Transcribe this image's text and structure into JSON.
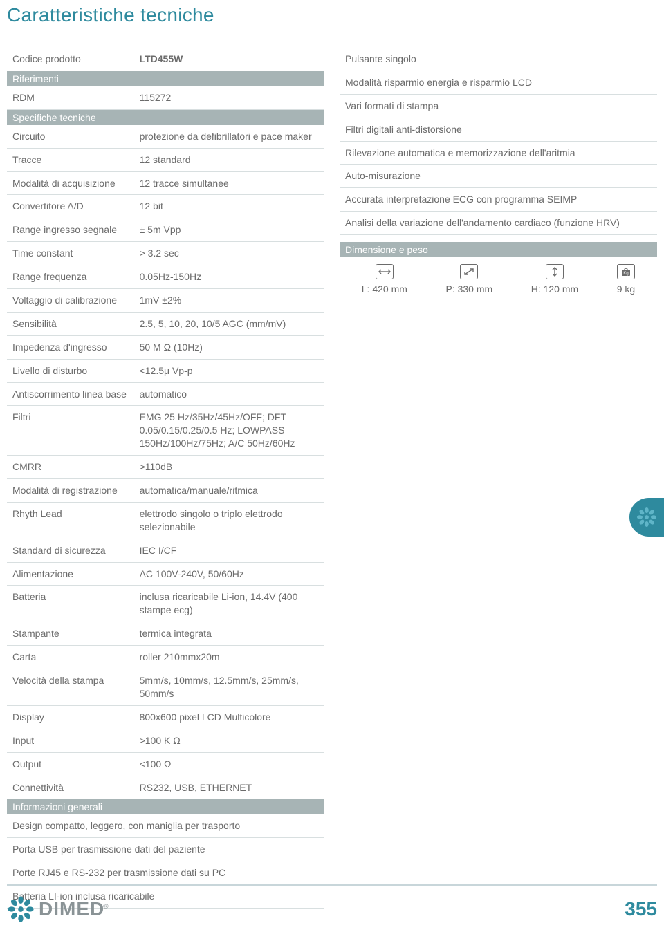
{
  "page": {
    "title": "Caratteristiche tecniche",
    "pageNumber": "355",
    "logoText": "DIMED"
  },
  "leftTable": {
    "firstRow": {
      "label": "Codice prodotto",
      "value": "LTD455W"
    },
    "sections": [
      {
        "header": "Riferimenti",
        "rows": [
          {
            "label": "RDM",
            "value": "115272"
          }
        ]
      },
      {
        "header": "Specifiche tecniche",
        "rows": [
          {
            "label": "Circuito",
            "value": "protezione da defibrillatori e pace maker"
          },
          {
            "label": "Tracce",
            "value": "12 standard"
          },
          {
            "label": "Modalità di acqui­sizione",
            "value": "12 tracce simultanee"
          },
          {
            "label": "Convertitore A/D",
            "value": "12 bit"
          },
          {
            "label": "Range ingresso seg­nale",
            "value": "± 5m Vpp"
          },
          {
            "label": "Time constant",
            "value": "> 3.2 sec"
          },
          {
            "label": "Range frequenza",
            "value": "0.05Hz-150Hz"
          },
          {
            "label": "Voltaggio di calibra­zione",
            "value": "1mV ±2%"
          },
          {
            "label": "Sensibilità",
            "value": "2.5, 5, 10, 20, 10/5 AGC (mm/mV)"
          },
          {
            "label": "Impedenza d'ingresso",
            "value": "50 M Ω (10Hz)"
          },
          {
            "label": "Livello di disturbo",
            "value": "<12.5μ Vp-p"
          },
          {
            "label": "Antiscorrimento linea base",
            "value": "automatico"
          },
          {
            "label": "Filtri",
            "value": "EMG 25 Hz/35Hz/45Hz/OFF; DFT 0.05/0.15/0.25/0.5 Hz; LOWPASS 150Hz/100Hz/75Hz; A/C 50Hz/60Hz"
          },
          {
            "label": "CMRR",
            "value": ">110dB"
          },
          {
            "label": "Modalità di registrazione",
            "value": "automatica/manuale/ritmica"
          },
          {
            "label": "Rhyth Lead",
            "value": "elettrodo singolo o triplo elettrodo selezionabile"
          },
          {
            "label": "Standard di sicurezza",
            "value": "IEC I/CF"
          },
          {
            "label": "Alimentazione",
            "value": "AC 100V-240V, 50/60Hz"
          },
          {
            "label": "Batteria",
            "value": "inclusa ricaricabile Li-ion, 14.4V (400 stampe ecg)"
          },
          {
            "label": "Stampante",
            "value": "termica integrata"
          },
          {
            "label": "Carta",
            "value": "roller 210mmx20m"
          },
          {
            "label": "Velocità della stampa",
            "value": "5mm/s, 10mm/s, 12.5mm/s, 25mm/s, 50mm/s"
          },
          {
            "label": "Display",
            "value": "800x600 pixel LCD Multicolore"
          },
          {
            "label": "Input",
            "value": ">100 K Ω"
          },
          {
            "label": "Output",
            "value": "<100 Ω"
          },
          {
            "label": "Connettività",
            "value": "RS232, USB, ETHERNET"
          }
        ]
      },
      {
        "header": "Informazioni generali",
        "fullRows": [
          "Design compatto, leggero, con maniglia per trasporto",
          "Porta USB per trasmissione dati del paziente",
          "Porte RJ45 e RS-232 per trasmissione dati su PC",
          "Batteria LI-ion inclusa ricaricabile"
        ]
      }
    ]
  },
  "rightTable": {
    "rows": [
      "Pulsante singolo",
      "Modalità risparmio energia e risparmio LCD",
      "Vari formati di stampa",
      "Filtri digitali anti-distorsione",
      "Rilevazione automatica e memorizzazione dell'aritmia",
      "Auto-misurazione",
      "Accurata interpretazione ECG con programma SEIMP",
      "Analisi della variazione dell'andamento cardiaco (funzione HRV)"
    ]
  },
  "dimensions": {
    "header": "Dimensione e peso",
    "items": [
      {
        "label": "L: 420 mm",
        "icon": "width"
      },
      {
        "label": "P: 330 mm",
        "icon": "diag"
      },
      {
        "label": "H: 120 mm",
        "icon": "height"
      },
      {
        "label": "9 kg",
        "icon": "weight"
      }
    ]
  },
  "colors": {
    "accent": "#2e8a9e",
    "sectionBg": "#a7b4b5",
    "text": "#6b6b6b",
    "border": "#d8dfe0",
    "logoGray": "#8a9396"
  }
}
